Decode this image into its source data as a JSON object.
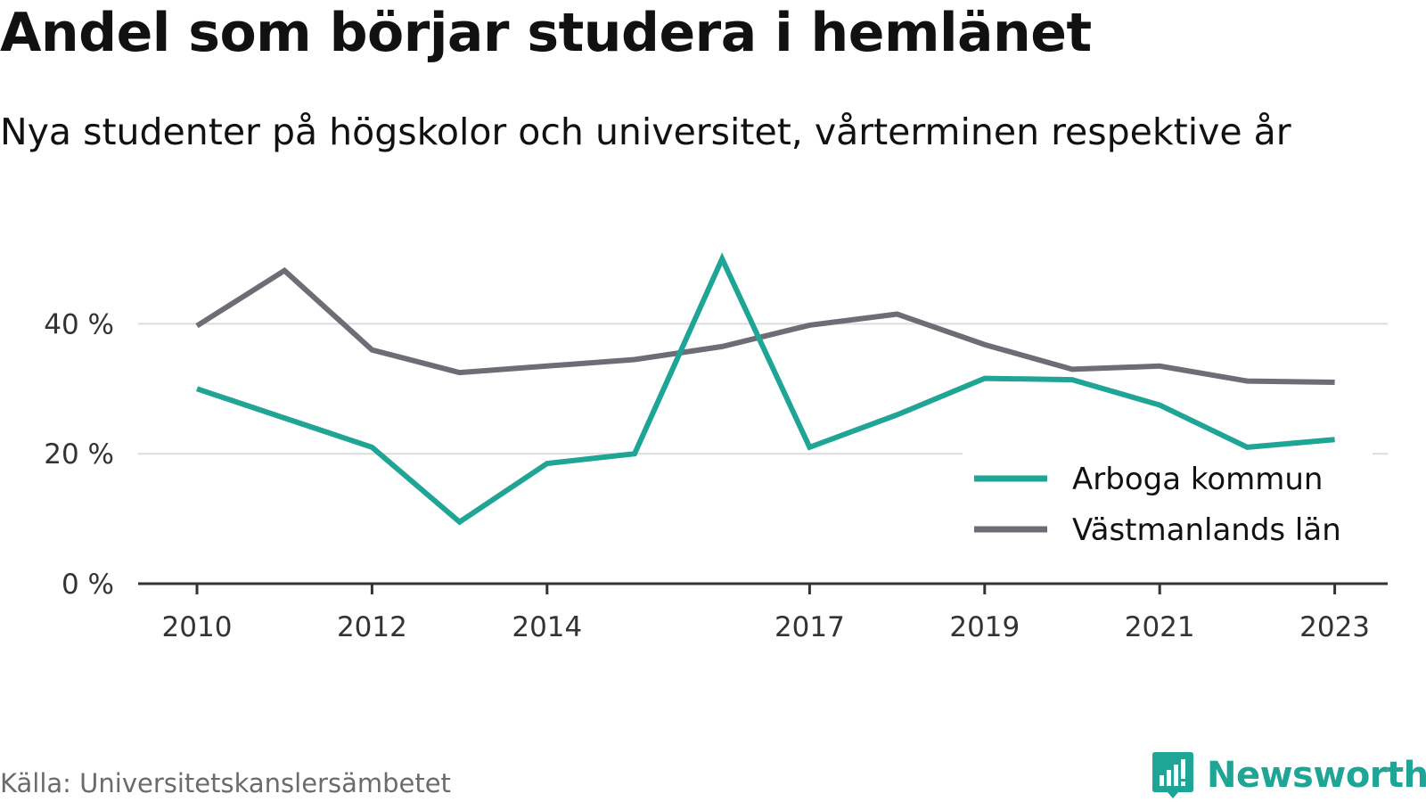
{
  "title": "Andel som börjar studera i hemlänet",
  "subtitle": "Nya studenter på högskolor och universitet, vårterminen respektive år",
  "source": "Källa: Universitetskanslersämbetet",
  "brand": {
    "name": "Newsworthy",
    "icon": "newsworthy-logo-icon",
    "color": "#1fa596"
  },
  "chart_data": {
    "type": "line",
    "x": [
      2010,
      2011,
      2012,
      2013,
      2014,
      2015,
      2016,
      2017,
      2018,
      2019,
      2020,
      2021,
      2022,
      2023
    ],
    "x_ticks": [
      "2010",
      "2012",
      "2014",
      "2017",
      "2019",
      "2021",
      "2023"
    ],
    "y_ticks": [
      "0 %",
      "20 %",
      "40 %"
    ],
    "ylim": [
      0,
      50
    ],
    "grid": true,
    "legend_position": "bottom-right",
    "series": [
      {
        "name": "Arboga kommun",
        "color": "#1fa596",
        "values": [
          30,
          25.5,
          21,
          9.5,
          18.5,
          20,
          50,
          21,
          26,
          31.6,
          31.4,
          27.5,
          21,
          22.2
        ]
      },
      {
        "name": "Västmanlands län",
        "color": "#6e6d76",
        "values": [
          39.7,
          48.2,
          36,
          32.5,
          33.5,
          34.5,
          36.5,
          39.8,
          41.5,
          36.8,
          33,
          33.5,
          31.2,
          31
        ]
      }
    ]
  }
}
